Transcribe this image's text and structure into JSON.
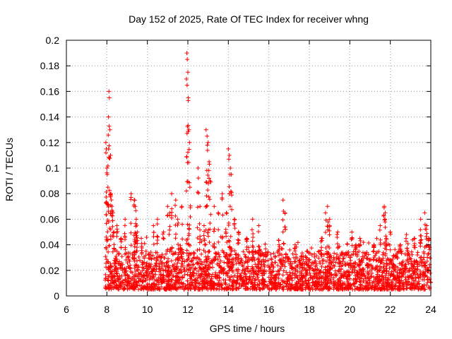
{
  "chart_data": {
    "type": "scatter",
    "title": "Day 152 of 2025, Rate Of TEC Index for receiver whng",
    "xlabel": "GPS time / hours",
    "ylabel": "ROTI / TECUs",
    "xlim": [
      6,
      24
    ],
    "ylim": [
      0,
      0.2
    ],
    "xticks": [
      "6",
      "8",
      "10",
      "12",
      "14",
      "16",
      "18",
      "20",
      "22",
      "24"
    ],
    "yticks": [
      "0",
      "0.02",
      "0.04",
      "0.06",
      "0.08",
      "0.1",
      "0.12",
      "0.14",
      "0.16",
      "0.18",
      "0.2"
    ],
    "grid": true,
    "marker": "+",
    "color": "#ff0000",
    "data_x_range": [
      7.9,
      24
    ],
    "baseline_band": [
      0.005,
      0.035
    ],
    "series": [
      {
        "name": "ROTI",
        "x": [
          7.95,
          7.97,
          8.0,
          8.02,
          8.05,
          8.08,
          8.1,
          8.12,
          8.15,
          8.18,
          8.2,
          8.25,
          8.3,
          8.35,
          8.5,
          8.7,
          8.9,
          9.2,
          9.35,
          9.4,
          9.45,
          9.5,
          9.7,
          10.3,
          10.5,
          10.8,
          11.0,
          11.1,
          11.2,
          11.4,
          11.5,
          11.7,
          11.95,
          11.97,
          12.0,
          12.02,
          12.05,
          12.08,
          12.1,
          12.5,
          12.6,
          12.8,
          12.9,
          12.95,
          13.0,
          13.05,
          13.1,
          13.3,
          13.5,
          13.7,
          13.9,
          14.0,
          14.05,
          14.1,
          14.15,
          14.3,
          14.5,
          14.9,
          15.2,
          15.5,
          16.5,
          16.7,
          16.8,
          17.3,
          17.9,
          18.6,
          18.8,
          18.9,
          19.0,
          19.4,
          20.1,
          20.3,
          20.5,
          21.2,
          21.5,
          21.7,
          21.75,
          21.8,
          22.0,
          22.5,
          22.8,
          23.2,
          23.5,
          23.7,
          23.8,
          23.9
        ],
        "y": [
          0.12,
          0.115,
          0.1,
          0.095,
          0.085,
          0.14,
          0.16,
          0.155,
          0.13,
          0.11,
          0.08,
          0.07,
          0.065,
          0.05,
          0.055,
          0.045,
          0.06,
          0.08,
          0.075,
          0.07,
          0.06,
          0.05,
          0.045,
          0.055,
          0.06,
          0.05,
          0.07,
          0.065,
          0.08,
          0.075,
          0.06,
          0.07,
          0.19,
          0.185,
          0.175,
          0.155,
          0.13,
          0.12,
          0.085,
          0.1,
          0.07,
          0.055,
          0.13,
          0.125,
          0.12,
          0.105,
          0.09,
          0.07,
          0.065,
          0.08,
          0.065,
          0.115,
          0.11,
          0.1,
          0.095,
          0.06,
          0.05,
          0.045,
          0.06,
          0.055,
          0.04,
          0.075,
          0.065,
          0.04,
          0.035,
          0.045,
          0.065,
          0.07,
          0.06,
          0.05,
          0.05,
          0.04,
          0.045,
          0.04,
          0.055,
          0.07,
          0.065,
          0.045,
          0.05,
          0.04,
          0.048,
          0.045,
          0.06,
          0.065,
          0.055,
          0.045
        ]
      }
    ]
  }
}
